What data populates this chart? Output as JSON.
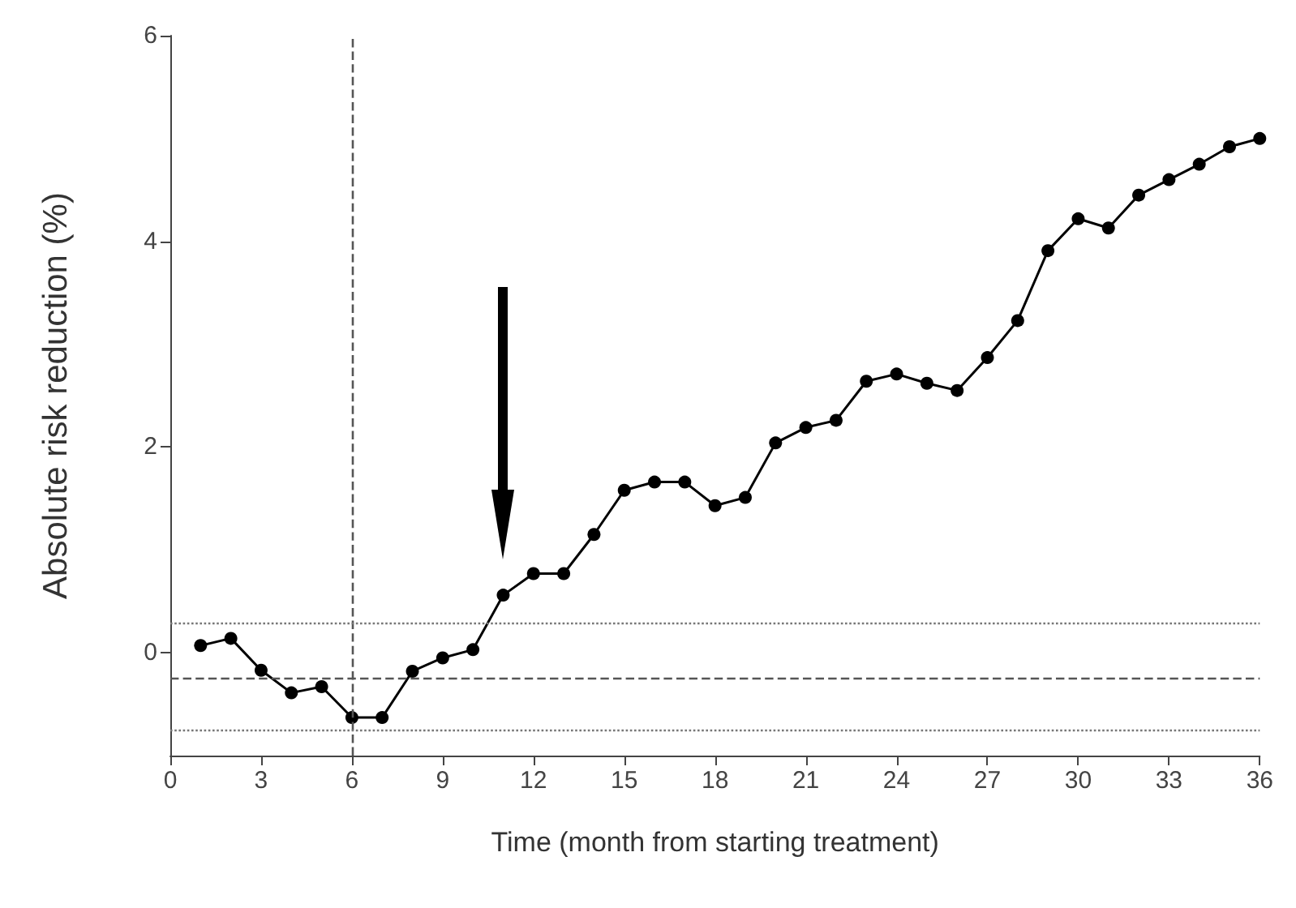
{
  "chart_data": {
    "type": "line",
    "xlabel": "Time (month from starting treatment)",
    "ylabel": "Absolute risk reduction (%)",
    "x": [
      1,
      2,
      3,
      4,
      5,
      6,
      7,
      8,
      9,
      10,
      11,
      12,
      13,
      14,
      15,
      16,
      17,
      18,
      19,
      20,
      21,
      22,
      23,
      24,
      25,
      26,
      27,
      28,
      29,
      30,
      31,
      32,
      33,
      34,
      35,
      36
    ],
    "series": [
      {
        "color": "#000000",
        "values": [
          0.07,
          0.14,
          -0.17,
          -0.39,
          -0.33,
          -0.63,
          -0.63,
          -0.18,
          -0.05,
          0.03,
          0.56,
          0.77,
          0.77,
          1.15,
          1.58,
          1.66,
          1.66,
          1.43,
          1.51,
          2.04,
          2.19,
          2.26,
          2.64,
          2.71,
          2.62,
          2.55,
          2.87,
          3.23,
          3.91,
          4.22,
          4.13,
          4.45,
          4.6,
          4.75,
          4.92,
          5.0
        ]
      }
    ],
    "xlim": [
      0,
      36
    ],
    "xticks": [
      0,
      3,
      6,
      9,
      12,
      15,
      18,
      21,
      24,
      27,
      30,
      33,
      36
    ],
    "ylim": [
      -1,
      6
    ],
    "yticks": [
      0,
      2,
      4,
      6
    ],
    "ref_lines": [
      {
        "axis": "x",
        "value": 6,
        "line_style": "dashed",
        "color": "#555555"
      },
      {
        "axis": "y",
        "value": -0.24,
        "line_style": "dashed",
        "color": "#555555"
      },
      {
        "axis": "y",
        "value": 0.29,
        "line_style": "dotted",
        "color": "#777777"
      },
      {
        "axis": "y",
        "value": -0.75,
        "line_style": "dotted",
        "color": "#777777"
      }
    ],
    "marker": "circle",
    "line_style": "solid"
  }
}
